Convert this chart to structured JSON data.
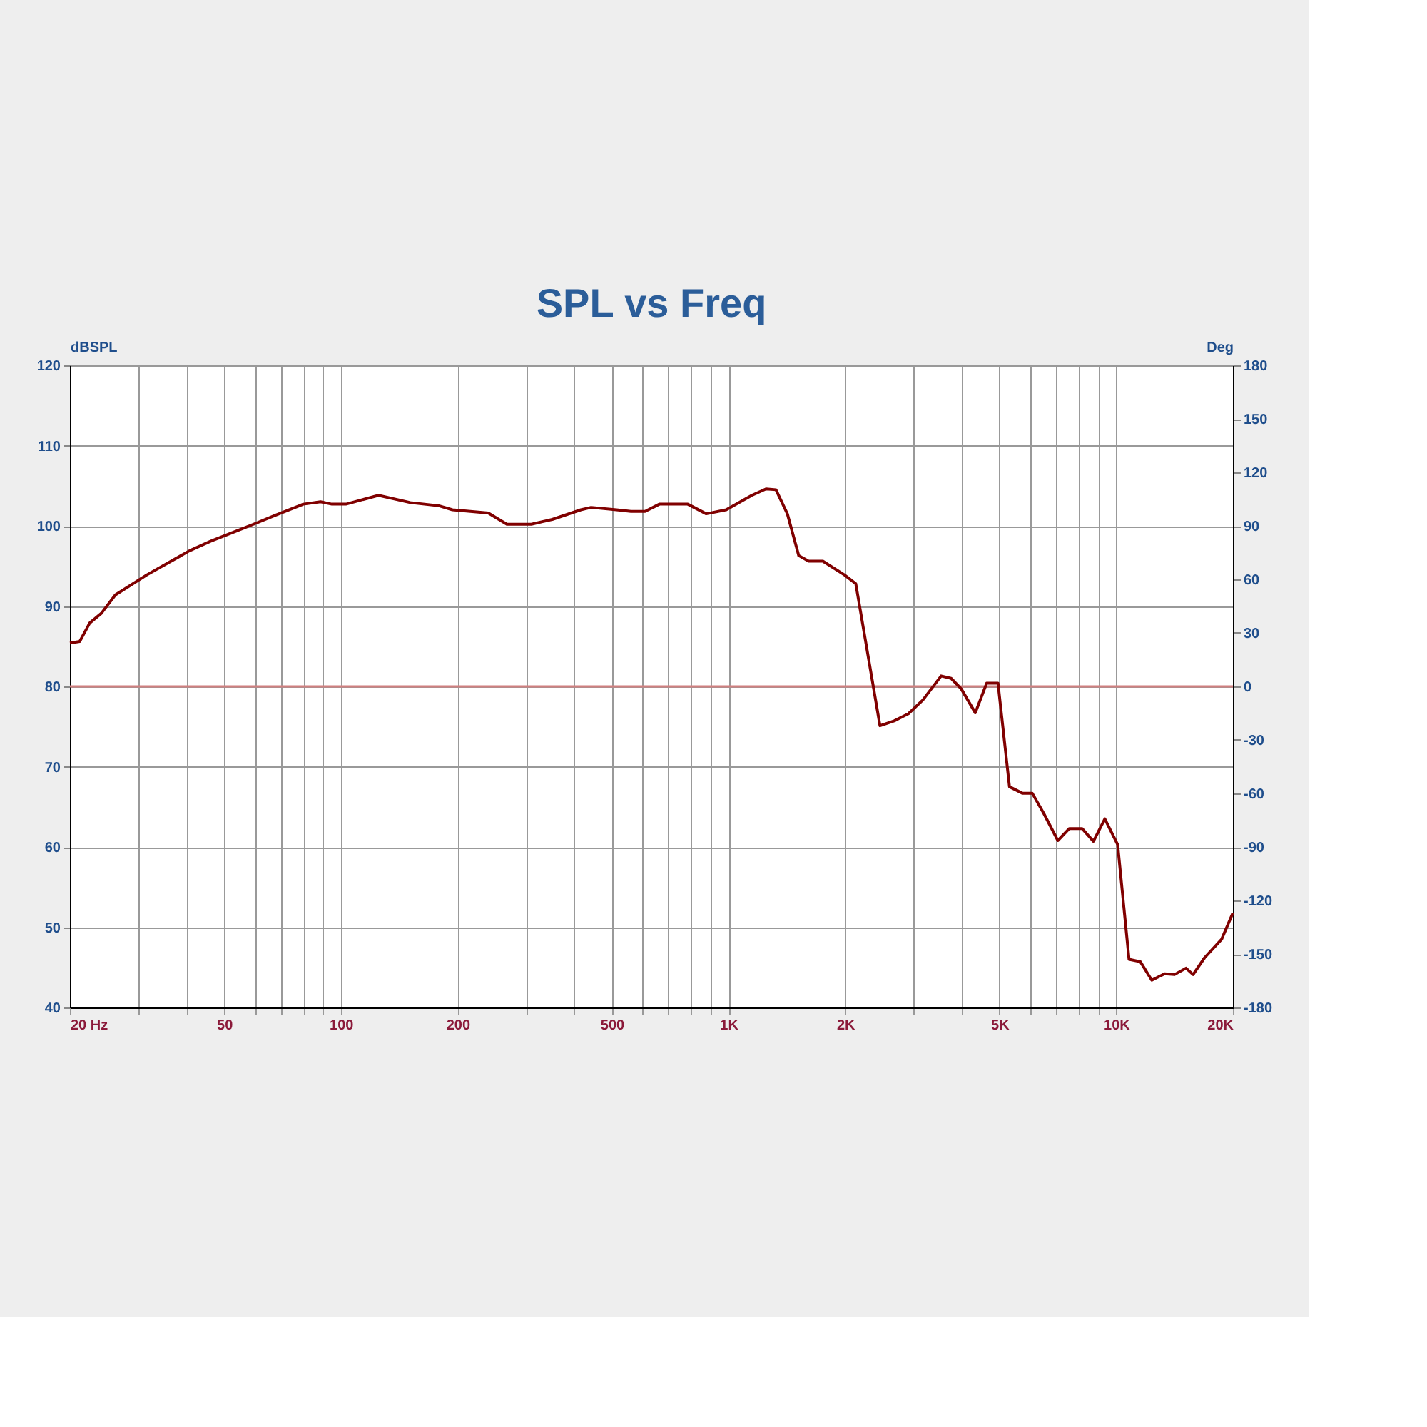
{
  "chart_data": {
    "type": "line",
    "title": "SPL vs Freq",
    "ylabel": "dBSPL",
    "y2label": "Deg",
    "log": "x",
    "grid": true,
    "xlim": [
      20,
      20000
    ],
    "xticks": [
      {
        "value": 20,
        "label": "20  Hz"
      },
      {
        "value": 30,
        "label": null
      },
      {
        "value": 40,
        "label": null
      },
      {
        "value": 50,
        "label": "50"
      },
      {
        "value": 60,
        "label": null
      },
      {
        "value": 70,
        "label": null
      },
      {
        "value": 80,
        "label": null
      },
      {
        "value": 90,
        "label": null
      },
      {
        "value": 100,
        "label": "100"
      },
      {
        "value": 200,
        "label": "200"
      },
      {
        "value": 300,
        "label": null
      },
      {
        "value": 400,
        "label": null
      },
      {
        "value": 500,
        "label": "500"
      },
      {
        "value": 600,
        "label": null
      },
      {
        "value": 700,
        "label": null
      },
      {
        "value": 800,
        "label": null
      },
      {
        "value": 900,
        "label": null
      },
      {
        "value": 1000,
        "label": "1K"
      },
      {
        "value": 2000,
        "label": "2K"
      },
      {
        "value": 3000,
        "label": null
      },
      {
        "value": 4000,
        "label": null
      },
      {
        "value": 5000,
        "label": "5K"
      },
      {
        "value": 6000,
        "label": null
      },
      {
        "value": 7000,
        "label": null
      },
      {
        "value": 8000,
        "label": null
      },
      {
        "value": 9000,
        "label": null
      },
      {
        "value": 10000,
        "label": "10K"
      },
      {
        "value": 20000,
        "label": "20K"
      }
    ],
    "ylim": [
      40,
      120
    ],
    "yticks": [
      40,
      50,
      60,
      70,
      80,
      90,
      100,
      110,
      120
    ],
    "y2lim": [
      -180,
      180
    ],
    "y2ticks": [
      -180,
      -150,
      -120,
      -90,
      -60,
      -30,
      0,
      30,
      60,
      90,
      120,
      150,
      180
    ],
    "ref_lines": [
      {
        "axis": "y2",
        "value": 0,
        "color": "#d08080"
      }
    ],
    "series": [
      {
        "color": "#800000",
        "x": [
          20,
          21.2,
          22.5,
          24.1,
          26.2,
          31.6,
          40.7,
          46.2,
          54.7,
          59.5,
          67.6,
          80,
          88.6,
          94.8,
          103,
          125,
          151,
          179,
          194,
          240,
          268,
          310,
          351,
          416,
          442,
          514,
          560,
          609,
          663,
          721,
          785,
          876,
          986,
          1148,
          1249,
          1325,
          1418,
          1517,
          1609,
          1751,
          1989,
          2129,
          2458,
          2674,
          2911,
          3170,
          3535,
          3751,
          3982,
          4330,
          4632,
          4955,
          5304,
          5725,
          6072,
          6499,
          7070,
          7568,
          8163,
          8733,
          9346,
          10085,
          10790,
          11541,
          12350,
          13330,
          14133,
          15135,
          15784,
          16900,
          18700,
          20000
        ],
        "values": [
          85.4,
          85.6,
          87.9,
          89.1,
          91.4,
          93.9,
          96.9,
          98.1,
          99.5,
          100.2,
          101.3,
          102.7,
          103.0,
          102.7,
          102.7,
          103.8,
          102.9,
          102.5,
          102.0,
          101.6,
          100.2,
          100.2,
          100.8,
          102.0,
          102.3,
          102.0,
          101.8,
          101.8,
          102.7,
          102.7,
          102.7,
          101.5,
          102.0,
          103.8,
          104.6,
          104.5,
          101.5,
          96.3,
          95.6,
          95.6,
          93.9,
          92.8,
          75.1,
          75.7,
          76.6,
          78.3,
          81.3,
          81.0,
          79.7,
          76.7,
          80.4,
          80.4,
          67.5,
          66.7,
          66.7,
          64.2,
          60.8,
          62.3,
          62.3,
          60.7,
          63.5,
          60.3,
          46.0,
          45.7,
          43.4,
          44.2,
          44.1,
          44.9,
          44.1,
          46.2,
          48.5,
          51.8
        ]
      }
    ]
  }
}
